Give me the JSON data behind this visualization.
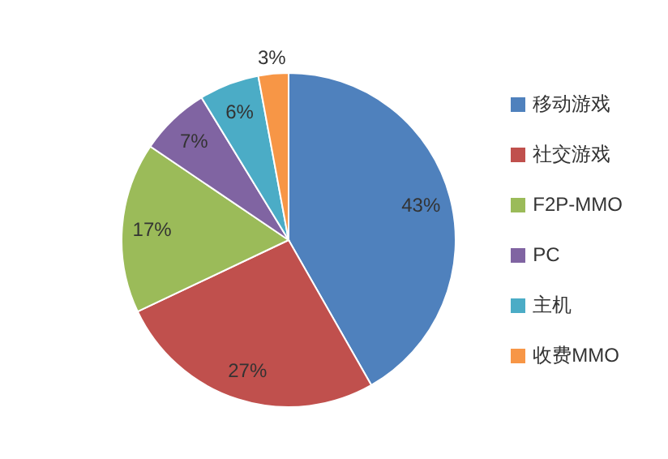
{
  "chart_data": {
    "type": "pie",
    "categories": [
      "移动游戏",
      "社交游戏",
      "F2P-MMO",
      "PC",
      "主机",
      "收费MMO"
    ],
    "values": [
      43,
      27,
      17,
      7,
      6,
      3
    ],
    "colors": [
      "#4f81bd",
      "#c0504d",
      "#9bbb59",
      "#8064a2",
      "#4bacc6",
      "#f79646"
    ],
    "value_labels": [
      "43%",
      "27%",
      "17%",
      "7%",
      "6%",
      "3%"
    ],
    "legend": "right"
  }
}
